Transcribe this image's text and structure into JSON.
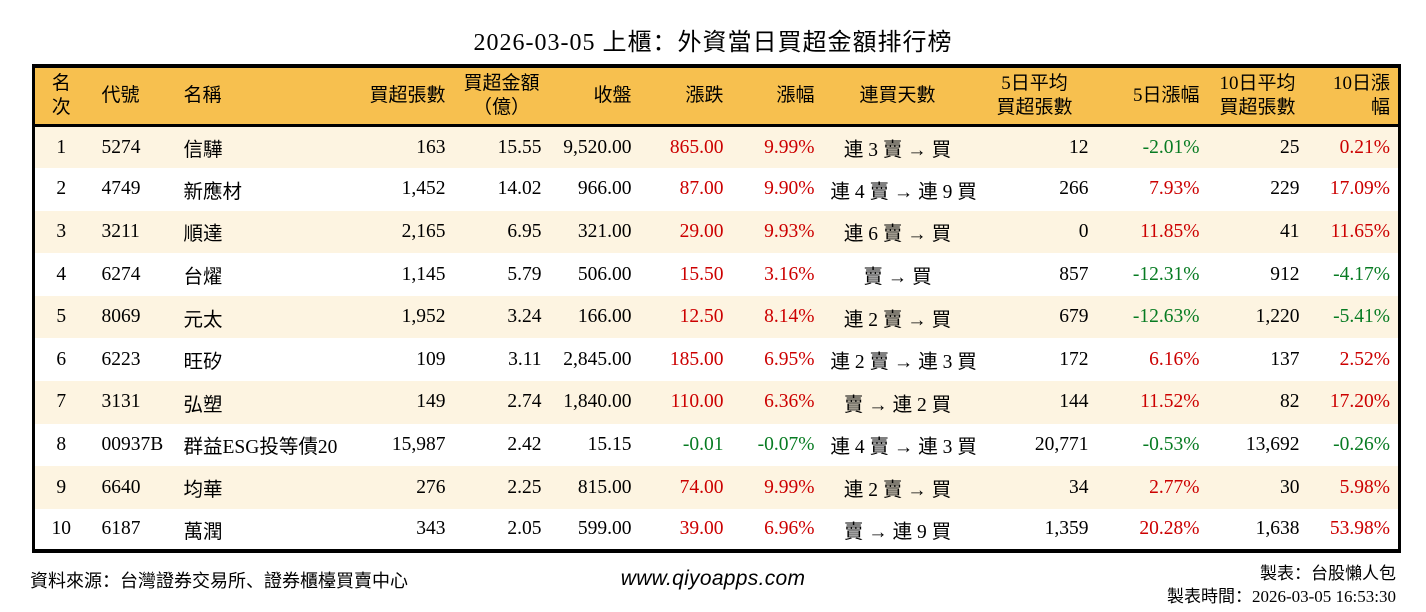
{
  "title": "2026-03-05 上櫃：外資當日買超金額排行榜",
  "colors": {
    "header_bg": "#F7C04F",
    "row_alt_bg": "#FDF4E1",
    "up_red": "#CC0000",
    "down_green": "#077B22",
    "border": "#000000"
  },
  "table": {
    "headers": [
      "名次",
      "代號",
      "名稱",
      "買超張數",
      "買超金額\n（億）",
      "收盤",
      "漲跌",
      "漲幅",
      "連買天數",
      "5日平均\n買超張數",
      "5日漲幅",
      "10日平均\n買超張數",
      "10日漲幅"
    ],
    "rows": [
      {
        "cells": [
          {
            "t": "1"
          },
          {
            "t": "5274"
          },
          {
            "t": "信驊"
          },
          {
            "t": "163"
          },
          {
            "t": "15.55"
          },
          {
            "t": "9,520.00"
          },
          {
            "t": "865.00",
            "c": "red"
          },
          {
            "t": "9.99%",
            "c": "red"
          },
          {
            "t": "連 3 賣 → 買"
          },
          {
            "t": "12"
          },
          {
            "t": "-2.01%",
            "c": "green"
          },
          {
            "t": "25"
          },
          {
            "t": "0.21%",
            "c": "red"
          }
        ]
      },
      {
        "cells": [
          {
            "t": "2"
          },
          {
            "t": "4749"
          },
          {
            "t": "新應材"
          },
          {
            "t": "1,452"
          },
          {
            "t": "14.02"
          },
          {
            "t": "966.00"
          },
          {
            "t": "87.00",
            "c": "red"
          },
          {
            "t": "9.90%",
            "c": "red"
          },
          {
            "t": "連 4 賣 → 連 9 買"
          },
          {
            "t": "266"
          },
          {
            "t": "7.93%",
            "c": "red"
          },
          {
            "t": "229"
          },
          {
            "t": "17.09%",
            "c": "red"
          }
        ]
      },
      {
        "cells": [
          {
            "t": "3"
          },
          {
            "t": "3211"
          },
          {
            "t": "順達"
          },
          {
            "t": "2,165"
          },
          {
            "t": "6.95"
          },
          {
            "t": "321.00"
          },
          {
            "t": "29.00",
            "c": "red"
          },
          {
            "t": "9.93%",
            "c": "red"
          },
          {
            "t": "連 6 賣 → 買"
          },
          {
            "t": "0"
          },
          {
            "t": "11.85%",
            "c": "red"
          },
          {
            "t": "41"
          },
          {
            "t": "11.65%",
            "c": "red"
          }
        ]
      },
      {
        "cells": [
          {
            "t": "4"
          },
          {
            "t": "6274"
          },
          {
            "t": "台燿"
          },
          {
            "t": "1,145"
          },
          {
            "t": "5.79"
          },
          {
            "t": "506.00"
          },
          {
            "t": "15.50",
            "c": "red"
          },
          {
            "t": "3.16%",
            "c": "red"
          },
          {
            "t": "賣 → 買"
          },
          {
            "t": "857"
          },
          {
            "t": "-12.31%",
            "c": "green"
          },
          {
            "t": "912"
          },
          {
            "t": "-4.17%",
            "c": "green"
          }
        ]
      },
      {
        "cells": [
          {
            "t": "5"
          },
          {
            "t": "8069"
          },
          {
            "t": "元太"
          },
          {
            "t": "1,952"
          },
          {
            "t": "3.24"
          },
          {
            "t": "166.00"
          },
          {
            "t": "12.50",
            "c": "red"
          },
          {
            "t": "8.14%",
            "c": "red"
          },
          {
            "t": "連 2 賣 → 買"
          },
          {
            "t": "679"
          },
          {
            "t": "-12.63%",
            "c": "green"
          },
          {
            "t": "1,220"
          },
          {
            "t": "-5.41%",
            "c": "green"
          }
        ]
      },
      {
        "cells": [
          {
            "t": "6"
          },
          {
            "t": "6223"
          },
          {
            "t": "旺矽"
          },
          {
            "t": "109"
          },
          {
            "t": "3.11"
          },
          {
            "t": "2,845.00"
          },
          {
            "t": "185.00",
            "c": "red"
          },
          {
            "t": "6.95%",
            "c": "red"
          },
          {
            "t": "連 2 賣 → 連 3 買"
          },
          {
            "t": "172"
          },
          {
            "t": "6.16%",
            "c": "red"
          },
          {
            "t": "137"
          },
          {
            "t": "2.52%",
            "c": "red"
          }
        ]
      },
      {
        "cells": [
          {
            "t": "7"
          },
          {
            "t": "3131"
          },
          {
            "t": "弘塑"
          },
          {
            "t": "149"
          },
          {
            "t": "2.74"
          },
          {
            "t": "1,840.00"
          },
          {
            "t": "110.00",
            "c": "red"
          },
          {
            "t": "6.36%",
            "c": "red"
          },
          {
            "t": "賣 → 連 2 買"
          },
          {
            "t": "144"
          },
          {
            "t": "11.52%",
            "c": "red"
          },
          {
            "t": "82"
          },
          {
            "t": "17.20%",
            "c": "red"
          }
        ]
      },
      {
        "cells": [
          {
            "t": "8"
          },
          {
            "t": "00937B"
          },
          {
            "t": "群益ESG投等債20"
          },
          {
            "t": "15,987"
          },
          {
            "t": "2.42"
          },
          {
            "t": "15.15"
          },
          {
            "t": "-0.01",
            "c": "green"
          },
          {
            "t": "-0.07%",
            "c": "green"
          },
          {
            "t": "連 4 賣 → 連 3 買"
          },
          {
            "t": "20,771"
          },
          {
            "t": "-0.53%",
            "c": "green"
          },
          {
            "t": "13,692"
          },
          {
            "t": "-0.26%",
            "c": "green"
          }
        ]
      },
      {
        "cells": [
          {
            "t": "9"
          },
          {
            "t": "6640"
          },
          {
            "t": "均華"
          },
          {
            "t": "276"
          },
          {
            "t": "2.25"
          },
          {
            "t": "815.00"
          },
          {
            "t": "74.00",
            "c": "red"
          },
          {
            "t": "9.99%",
            "c": "red"
          },
          {
            "t": "連 2 賣 → 買"
          },
          {
            "t": "34"
          },
          {
            "t": "2.77%",
            "c": "red"
          },
          {
            "t": "30"
          },
          {
            "t": "5.98%",
            "c": "red"
          }
        ]
      },
      {
        "cells": [
          {
            "t": "10"
          },
          {
            "t": "6187"
          },
          {
            "t": "萬潤"
          },
          {
            "t": "343"
          },
          {
            "t": "2.05"
          },
          {
            "t": "599.00"
          },
          {
            "t": "39.00",
            "c": "red"
          },
          {
            "t": "6.96%",
            "c": "red"
          },
          {
            "t": "賣 → 連 9 買"
          },
          {
            "t": "1,359"
          },
          {
            "t": "20.28%",
            "c": "red"
          },
          {
            "t": "1,638"
          },
          {
            "t": "53.98%",
            "c": "red"
          }
        ]
      }
    ]
  },
  "footer": {
    "source": "資料來源：台灣證券交易所、證券櫃檯買賣中心",
    "website": "www.qiyoapps.com",
    "made_by": "製表：台股懶人包",
    "made_time": "製表時間：2026-03-05 16:53:30"
  }
}
